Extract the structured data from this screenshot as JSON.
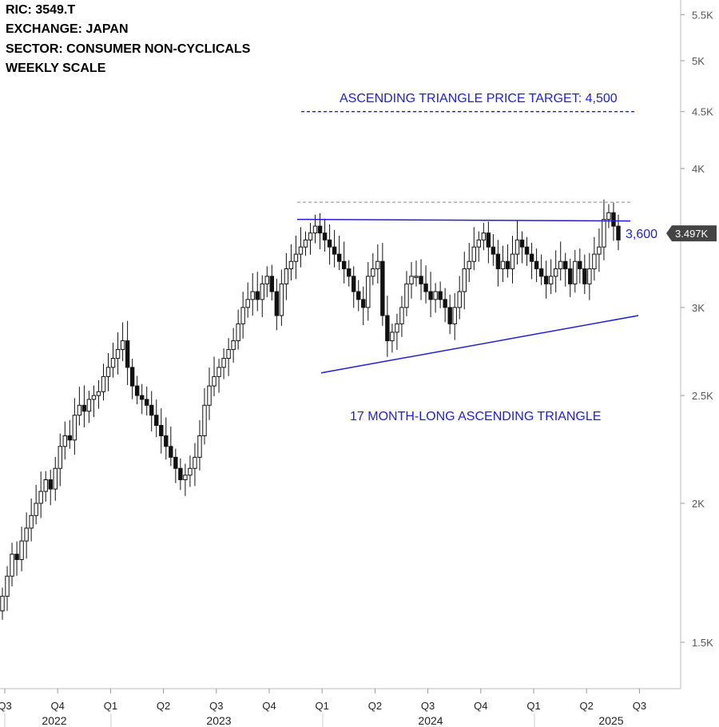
{
  "header": {
    "ric": "RIC:  3549.T",
    "exchange": "EXCHANGE:  JAPAN",
    "sector": "SECTOR:  CONSUMER NON-CYCLICALS",
    "scale": "WEEKLY SCALE"
  },
  "annotations": {
    "target": "ASCENDING TRIANGLE PRICE TARGET: 4,500",
    "resistance_label": "3,600",
    "pattern": "17 MONTH-LONG ASCENDING TRIANGLE",
    "last_price_badge": "3.497K"
  },
  "colors": {
    "annotation": "#1f1fd0",
    "candle": "#111111",
    "badge": "#444444"
  },
  "chart_data": {
    "type": "candlestick",
    "scale": "log",
    "ylim": [
      1300,
      5700
    ],
    "y_ticks": [
      {
        "value": 5500,
        "label": "5.5K"
      },
      {
        "value": 5000,
        "label": "5K"
      },
      {
        "value": 4500,
        "label": "4.5K"
      },
      {
        "value": 4000,
        "label": "4K"
      },
      {
        "value": 3500,
        "label": "3.5K"
      },
      {
        "value": 3000,
        "label": "3K"
      },
      {
        "value": 2500,
        "label": "2.5K"
      },
      {
        "value": 2000,
        "label": "2K"
      },
      {
        "value": 1500,
        "label": "1.5K"
      }
    ],
    "x_ticks": [
      "Q3",
      "Q4",
      "Q1",
      "Q2",
      "Q3",
      "Q4",
      "Q1",
      "Q2",
      "Q3",
      "Q4",
      "Q1",
      "Q2",
      "Q3"
    ],
    "x_years": [
      "2022",
      "2023",
      "2024",
      "2025"
    ],
    "target": 4500,
    "resistance": 3600,
    "resistance_dashed": 3730,
    "support_line": {
      "start": 2620,
      "end": 2950
    },
    "last_price": 3497,
    "closes": [
      1650,
      1720,
      1800,
      1780,
      1850,
      1900,
      1950,
      2000,
      2050,
      2100,
      2060,
      2150,
      2250,
      2300,
      2280,
      2400,
      2450,
      2420,
      2480,
      2500,
      2520,
      2600,
      2650,
      2700,
      2750,
      2800,
      2650,
      2550,
      2500,
      2480,
      2450,
      2400,
      2350,
      2300,
      2250,
      2200,
      2150,
      2100,
      2120,
      2150,
      2200,
      2300,
      2450,
      2550,
      2600,
      2650,
      2700,
      2750,
      2800,
      2900,
      3000,
      3050,
      3100,
      3050,
      3150,
      3200,
      3100,
      2950,
      3150,
      3250,
      3300,
      3350,
      3400,
      3450,
      3500,
      3550,
      3500,
      3450,
      3400,
      3350,
      3300,
      3250,
      3200,
      3100,
      3050,
      3000,
      3200,
      3250,
      3300,
      2950,
      2800,
      2850,
      2900,
      3000,
      3150,
      3200,
      3200,
      3150,
      3100,
      3050,
      3100,
      3050,
      3000,
      2900,
      3000,
      3100,
      3250,
      3300,
      3400,
      3450,
      3500,
      3400,
      3350,
      3250,
      3300,
      3250,
      3350,
      3450,
      3400,
      3350,
      3300,
      3250,
      3200,
      3150,
      3200,
      3250,
      3300,
      3250,
      3150,
      3300,
      3250,
      3150,
      3250,
      3350,
      3400,
      3600,
      3650,
      3550,
      3450
    ]
  }
}
